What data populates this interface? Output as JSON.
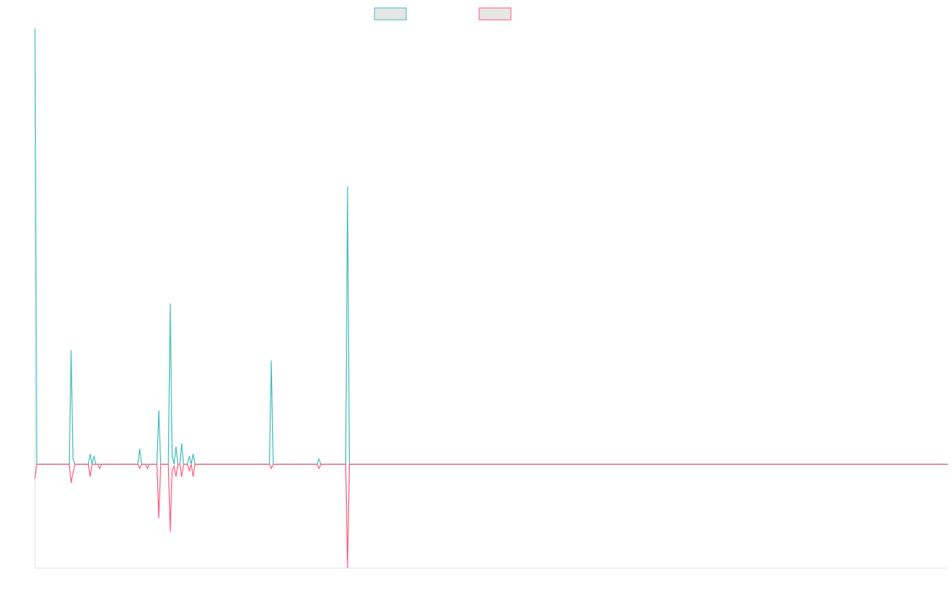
{
  "chart_data": {
    "type": "line",
    "title": "",
    "xlabel": "",
    "ylabel": "",
    "grid": false,
    "legend": "top-center",
    "ylim": [
      -100,
      420
    ],
    "series": [
      {
        "color": "#4bc0c0",
        "points": [
          [
            0,
            420
          ],
          [
            1,
            0
          ],
          [
            2,
            0
          ],
          [
            3,
            0
          ],
          [
            4,
            0
          ],
          [
            5,
            0
          ],
          [
            6,
            0
          ],
          [
            7,
            0
          ],
          [
            8,
            0
          ],
          [
            9,
            0
          ],
          [
            10,
            0
          ],
          [
            11,
            0
          ],
          [
            12,
            0
          ],
          [
            13,
            0
          ],
          [
            14,
            0
          ],
          [
            15,
            0
          ],
          [
            16,
            0
          ],
          [
            17,
            0
          ],
          [
            18,
            0
          ],
          [
            19,
            110
          ],
          [
            20,
            5
          ],
          [
            21,
            0
          ],
          [
            22,
            0
          ],
          [
            23,
            0
          ],
          [
            24,
            0
          ],
          [
            25,
            0
          ],
          [
            26,
            0
          ],
          [
            27,
            0
          ],
          [
            28,
            0
          ],
          [
            29,
            10
          ],
          [
            30,
            0
          ],
          [
            31,
            8
          ],
          [
            32,
            0
          ],
          [
            33,
            0
          ],
          [
            34,
            0
          ],
          [
            35,
            0
          ],
          [
            36,
            0
          ],
          [
            37,
            0
          ],
          [
            38,
            0
          ],
          [
            39,
            0
          ],
          [
            40,
            0
          ],
          [
            41,
            0
          ],
          [
            42,
            0
          ],
          [
            43,
            0
          ],
          [
            44,
            0
          ],
          [
            45,
            0
          ],
          [
            46,
            0
          ],
          [
            47,
            0
          ],
          [
            48,
            0
          ],
          [
            49,
            0
          ],
          [
            50,
            0
          ],
          [
            51,
            0
          ],
          [
            52,
            0
          ],
          [
            53,
            0
          ],
          [
            54,
            0
          ],
          [
            55,
            15
          ],
          [
            56,
            0
          ],
          [
            57,
            0
          ],
          [
            58,
            0
          ],
          [
            59,
            0
          ],
          [
            60,
            0
          ],
          [
            61,
            0
          ],
          [
            62,
            0
          ],
          [
            63,
            0
          ],
          [
            64,
            0
          ],
          [
            65,
            52
          ],
          [
            66,
            0
          ],
          [
            67,
            0
          ],
          [
            68,
            0
          ],
          [
            69,
            0
          ],
          [
            70,
            0
          ],
          [
            71,
            155
          ],
          [
            72,
            8
          ],
          [
            73,
            0
          ],
          [
            74,
            17
          ],
          [
            75,
            0
          ],
          [
            76,
            0
          ],
          [
            77,
            20
          ],
          [
            78,
            0
          ],
          [
            79,
            0
          ],
          [
            80,
            0
          ],
          [
            81,
            8
          ],
          [
            82,
            0
          ],
          [
            83,
            10
          ],
          [
            84,
            0
          ],
          [
            85,
            0
          ],
          [
            86,
            0
          ],
          [
            87,
            0
          ],
          [
            88,
            0
          ],
          [
            89,
            0
          ],
          [
            90,
            0
          ],
          [
            91,
            0
          ],
          [
            92,
            0
          ],
          [
            93,
            0
          ],
          [
            94,
            0
          ],
          [
            95,
            0
          ],
          [
            96,
            0
          ],
          [
            97,
            0
          ],
          [
            98,
            0
          ],
          [
            99,
            0
          ],
          [
            100,
            0
          ],
          [
            101,
            0
          ],
          [
            102,
            0
          ],
          [
            103,
            0
          ],
          [
            104,
            0
          ],
          [
            105,
            0
          ],
          [
            106,
            0
          ],
          [
            107,
            0
          ],
          [
            108,
            0
          ],
          [
            109,
            0
          ],
          [
            110,
            0
          ],
          [
            111,
            0
          ],
          [
            112,
            0
          ],
          [
            113,
            0
          ],
          [
            114,
            0
          ],
          [
            115,
            0
          ],
          [
            116,
            0
          ],
          [
            117,
            0
          ],
          [
            118,
            0
          ],
          [
            119,
            0
          ],
          [
            120,
            0
          ],
          [
            121,
            0
          ],
          [
            122,
            0
          ],
          [
            123,
            0
          ],
          [
            124,
            100
          ],
          [
            125,
            0
          ],
          [
            126,
            0
          ],
          [
            127,
            0
          ],
          [
            128,
            0
          ],
          [
            129,
            0
          ],
          [
            130,
            0
          ],
          [
            131,
            0
          ],
          [
            132,
            0
          ],
          [
            133,
            0
          ],
          [
            134,
            0
          ],
          [
            135,
            0
          ],
          [
            136,
            0
          ],
          [
            137,
            0
          ],
          [
            138,
            0
          ],
          [
            139,
            0
          ],
          [
            140,
            0
          ],
          [
            141,
            0
          ],
          [
            142,
            0
          ],
          [
            143,
            0
          ],
          [
            144,
            0
          ],
          [
            145,
            0
          ],
          [
            146,
            0
          ],
          [
            147,
            0
          ],
          [
            148,
            0
          ],
          [
            149,
            5
          ],
          [
            150,
            0
          ],
          [
            151,
            0
          ],
          [
            152,
            0
          ],
          [
            153,
            0
          ],
          [
            154,
            0
          ],
          [
            155,
            0
          ],
          [
            156,
            0
          ],
          [
            157,
            0
          ],
          [
            158,
            0
          ],
          [
            159,
            0
          ],
          [
            160,
            0
          ],
          [
            161,
            0
          ],
          [
            162,
            0
          ],
          [
            163,
            0
          ],
          [
            164,
            268
          ],
          [
            165,
            0
          ],
          [
            166,
            0
          ],
          [
            479,
            0
          ]
        ]
      },
      {
        "color": "#ff6384",
        "points": [
          [
            0,
            -14
          ],
          [
            1,
            0
          ],
          [
            2,
            0
          ],
          [
            3,
            0
          ],
          [
            4,
            0
          ],
          [
            5,
            0
          ],
          [
            6,
            0
          ],
          [
            7,
            0
          ],
          [
            8,
            0
          ],
          [
            9,
            0
          ],
          [
            10,
            0
          ],
          [
            11,
            0
          ],
          [
            12,
            0
          ],
          [
            13,
            0
          ],
          [
            14,
            0
          ],
          [
            15,
            0
          ],
          [
            16,
            0
          ],
          [
            17,
            0
          ],
          [
            18,
            0
          ],
          [
            19,
            -18
          ],
          [
            20,
            -8
          ],
          [
            21,
            0
          ],
          [
            22,
            0
          ],
          [
            23,
            0
          ],
          [
            24,
            0
          ],
          [
            25,
            0
          ],
          [
            26,
            0
          ],
          [
            27,
            0
          ],
          [
            28,
            0
          ],
          [
            29,
            -12
          ],
          [
            30,
            0
          ],
          [
            31,
            0
          ],
          [
            32,
            0
          ],
          [
            33,
            0
          ],
          [
            34,
            -4
          ],
          [
            35,
            0
          ],
          [
            36,
            0
          ],
          [
            37,
            0
          ],
          [
            38,
            0
          ],
          [
            39,
            0
          ],
          [
            40,
            0
          ],
          [
            41,
            0
          ],
          [
            42,
            0
          ],
          [
            43,
            0
          ],
          [
            44,
            0
          ],
          [
            45,
            0
          ],
          [
            46,
            0
          ],
          [
            47,
            0
          ],
          [
            48,
            0
          ],
          [
            49,
            0
          ],
          [
            50,
            0
          ],
          [
            51,
            0
          ],
          [
            52,
            0
          ],
          [
            53,
            0
          ],
          [
            54,
            0
          ],
          [
            55,
            -4
          ],
          [
            56,
            0
          ],
          [
            57,
            0
          ],
          [
            58,
            0
          ],
          [
            59,
            -4
          ],
          [
            60,
            0
          ],
          [
            61,
            0
          ],
          [
            62,
            0
          ],
          [
            63,
            0
          ],
          [
            64,
            0
          ],
          [
            65,
            -52
          ],
          [
            66,
            0
          ],
          [
            67,
            0
          ],
          [
            68,
            0
          ],
          [
            69,
            0
          ],
          [
            70,
            0
          ],
          [
            71,
            -65
          ],
          [
            72,
            -6
          ],
          [
            73,
            -2
          ],
          [
            74,
            -12
          ],
          [
            75,
            0
          ],
          [
            76,
            0
          ],
          [
            77,
            -12
          ],
          [
            78,
            0
          ],
          [
            79,
            0
          ],
          [
            80,
            0
          ],
          [
            81,
            -6
          ],
          [
            82,
            0
          ],
          [
            83,
            -12
          ],
          [
            84,
            0
          ],
          [
            85,
            0
          ],
          [
            86,
            0
          ],
          [
            87,
            0
          ],
          [
            88,
            0
          ],
          [
            89,
            0
          ],
          [
            90,
            0
          ],
          [
            91,
            0
          ],
          [
            92,
            0
          ],
          [
            93,
            0
          ],
          [
            94,
            0
          ],
          [
            95,
            0
          ],
          [
            96,
            0
          ],
          [
            97,
            0
          ],
          [
            98,
            0
          ],
          [
            99,
            0
          ],
          [
            100,
            0
          ],
          [
            101,
            0
          ],
          [
            102,
            0
          ],
          [
            103,
            0
          ],
          [
            104,
            0
          ],
          [
            105,
            0
          ],
          [
            106,
            0
          ],
          [
            107,
            0
          ],
          [
            108,
            0
          ],
          [
            109,
            0
          ],
          [
            110,
            0
          ],
          [
            111,
            0
          ],
          [
            112,
            0
          ],
          [
            113,
            0
          ],
          [
            114,
            0
          ],
          [
            115,
            0
          ],
          [
            116,
            0
          ],
          [
            117,
            0
          ],
          [
            118,
            0
          ],
          [
            119,
            0
          ],
          [
            120,
            0
          ],
          [
            121,
            0
          ],
          [
            122,
            0
          ],
          [
            123,
            0
          ],
          [
            124,
            -4
          ],
          [
            125,
            0
          ],
          [
            126,
            0
          ],
          [
            127,
            0
          ],
          [
            128,
            0
          ],
          [
            129,
            0
          ],
          [
            130,
            0
          ],
          [
            131,
            0
          ],
          [
            132,
            0
          ],
          [
            133,
            0
          ],
          [
            134,
            0
          ],
          [
            135,
            0
          ],
          [
            136,
            0
          ],
          [
            137,
            0
          ],
          [
            138,
            0
          ],
          [
            139,
            0
          ],
          [
            140,
            0
          ],
          [
            141,
            0
          ],
          [
            142,
            0
          ],
          [
            143,
            0
          ],
          [
            144,
            0
          ],
          [
            145,
            0
          ],
          [
            146,
            0
          ],
          [
            147,
            0
          ],
          [
            148,
            0
          ],
          [
            149,
            -4
          ],
          [
            150,
            0
          ],
          [
            151,
            0
          ],
          [
            152,
            0
          ],
          [
            153,
            0
          ],
          [
            154,
            0
          ],
          [
            155,
            0
          ],
          [
            156,
            0
          ],
          [
            157,
            0
          ],
          [
            158,
            0
          ],
          [
            159,
            0
          ],
          [
            160,
            0
          ],
          [
            161,
            0
          ],
          [
            162,
            0
          ],
          [
            163,
            0
          ],
          [
            164,
            -100
          ],
          [
            165,
            0
          ],
          [
            166,
            0
          ],
          [
            479,
            0
          ]
        ]
      }
    ],
    "xlim": [
      0,
      479
    ]
  }
}
